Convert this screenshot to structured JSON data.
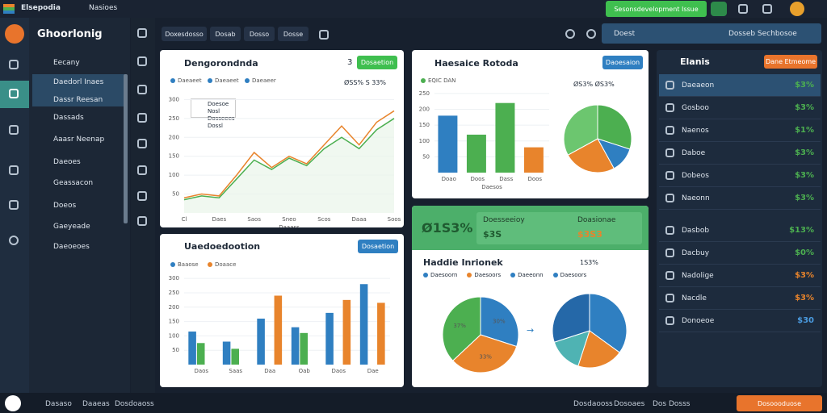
{
  "topbar": {
    "brand": "Elsepodia",
    "menu": "Nasioes",
    "action": "Sesonsdevelopment Issue"
  },
  "sidebar": {
    "title": "Ghoorlonig",
    "items": [
      "Eecany",
      "Daedorl Inaes",
      "Dassr Reesan",
      "Dassads",
      "Aaasr Neenap",
      "Daeoes",
      "Geassacon",
      "Doeos",
      "Gaeyeade",
      "Daeoeoes"
    ]
  },
  "toolbar": [
    "Doxesdosso",
    "Dosab",
    "Dosso",
    "Dosse"
  ],
  "search": {
    "left": "Doest",
    "right": "Dosseb Sechbosoe"
  },
  "panels": [
    {
      "title": "Dengorondnda",
      "badge": "3",
      "button": "Dosaetion",
      "stat": "ØSS%  S 33%",
      "annotation": [
        "Doesoe Nosl",
        "Dosseees Dossl"
      ],
      "chart": {
        "type": "line",
        "legend": [
          "Daeaeet",
          "Daeaeet",
          "Daeaeer"
        ],
        "legend_colors": [
          "#2f7fc1",
          "#2f7fc1",
          "#2f7fc1"
        ],
        "categories": [
          "Cl",
          null,
          "Daes",
          null,
          "Saos",
          null,
          "Sneo",
          null,
          "Scos",
          null,
          "Daaa",
          null,
          "Soos"
        ],
        "series": [
          {
            "color": "#e8842c",
            "values": [
              40,
              50,
              45,
              100,
              160,
              120,
              150,
              130,
              180,
              230,
              180,
              240,
              270
            ]
          },
          {
            "color": "#4caf50",
            "values": [
              35,
              45,
              40,
              90,
              140,
              115,
              145,
              125,
              170,
              200,
              170,
              220,
              250
            ]
          }
        ],
        "ylim": [
          0,
          320
        ],
        "yticks": [
          50,
          100,
          150,
          200,
          250,
          300
        ],
        "xlabel": "Daaass"
      }
    },
    {
      "title": "Uaedoedootion",
      "button": "Dosaetion",
      "chart": {
        "type": "bar",
        "legend": [
          "Baaose",
          "Doaace"
        ],
        "legend_colors": [
          "#2f7fc1",
          "#e8842c"
        ],
        "categories": [
          "Daos",
          "Saas",
          "Daa",
          "Oab",
          "Daos",
          "Dae"
        ],
        "series": [
          {
            "color": "#2f7fc1",
            "values": [
              115,
              80,
              160,
              130,
              180,
              280
            ]
          },
          {
            "color": "#4caf50",
            "values": [
              75,
              55,
              0,
              110,
              0,
              0
            ]
          },
          {
            "color": "#e8842c",
            "values": [
              0,
              0,
              240,
              0,
              225,
              215
            ]
          }
        ],
        "ylim": [
          0,
          320
        ],
        "yticks": [
          50,
          100,
          150,
          200,
          250,
          300
        ]
      }
    },
    {
      "title": "Haesaice Rotoda",
      "button": "Daoesaion",
      "stat": "ØS3%  ØS3%",
      "chart": {
        "type": "bar",
        "legend": [
          "EQIC DAN"
        ],
        "legend_colors": [
          "#4caf50"
        ],
        "categories": [
          "Doao",
          "Doos",
          "Dass",
          "Doos"
        ],
        "series": [
          {
            "colors": [
              "#2f7fc1",
              "#4caf50",
              "#4caf50",
              "#e8842c"
            ],
            "values": [
              180,
              120,
              220,
              80
            ]
          }
        ],
        "ylim": [
          0,
          260
        ],
        "yticks": [
          50,
          100,
          150,
          200,
          250
        ],
        "xlabel": "Daesos"
      },
      "pie": {
        "type": "pie",
        "values": [
          30,
          12,
          25,
          33
        ],
        "colors": [
          "#4caf50",
          "#2f7fc1",
          "#e8842c",
          "#6cc66f"
        ]
      }
    },
    {
      "header": {
        "value": "Ø1S3%",
        "labels": [
          "Doesseeioy",
          "Doasionae"
        ],
        "values": [
          "$3S",
          "$3S3"
        ]
      },
      "title": "Haddie Inrionek",
      "stat": "1S3%",
      "legend": [
        "Daesoorn",
        "Daesoors",
        "Daeeonn",
        "Daesoors"
      ],
      "legend_colors": [
        "#2f7fc1",
        "#e8842c",
        "#2f7fc1",
        "#2f7fc1"
      ],
      "pies": [
        {
          "type": "pie",
          "values": [
            30,
            33,
            37
          ],
          "value_labels": [
            "30%",
            "33%",
            "37%"
          ],
          "colors": [
            "#2f7fc1",
            "#e8842c",
            "#4caf50"
          ]
        },
        {
          "type": "pie",
          "values": [
            35,
            20,
            15,
            30
          ],
          "colors": [
            "#2f7fc1",
            "#e8842c",
            "#4fb3b3",
            "#2568a8"
          ]
        }
      ]
    }
  ],
  "rightpanel": {
    "title": "Elanis",
    "button": "Dane Etmeome",
    "rows": [
      {
        "label": "Daeaeon",
        "value": "$3%",
        "color": "#4caf50"
      },
      {
        "label": "Gosboo",
        "value": "$3%",
        "color": "#4caf50"
      },
      {
        "label": "Naenos",
        "value": "$1%",
        "color": "#4caf50"
      },
      {
        "label": "Daboe",
        "value": "$3%",
        "color": "#4caf50"
      },
      {
        "label": "Dobeos",
        "value": "$3%",
        "color": "#4caf50"
      },
      {
        "label": "Naeonn",
        "value": "$3%",
        "color": "#4caf50"
      },
      {
        "label": "Dasbob",
        "value": "$13%",
        "color": "#4caf50"
      },
      {
        "label": "Dacbuy",
        "value": "$0%",
        "color": "#4caf50"
      },
      {
        "label": "Nadolige",
        "value": "$3%",
        "color": "#e8842c"
      },
      {
        "label": "Nacdle",
        "value": "$3%",
        "color": "#e8842c"
      },
      {
        "label": "Donoeoe",
        "value": "$30",
        "color": "#4a9be0"
      }
    ]
  },
  "bottombar": {
    "left": [
      "Dasaso",
      "Daaeas",
      "Dosdoaoss"
    ],
    "right": [
      "Dosdaooss",
      "Dosoaes",
      "Dos Dosss"
    ],
    "button": "Dosoooduose"
  }
}
